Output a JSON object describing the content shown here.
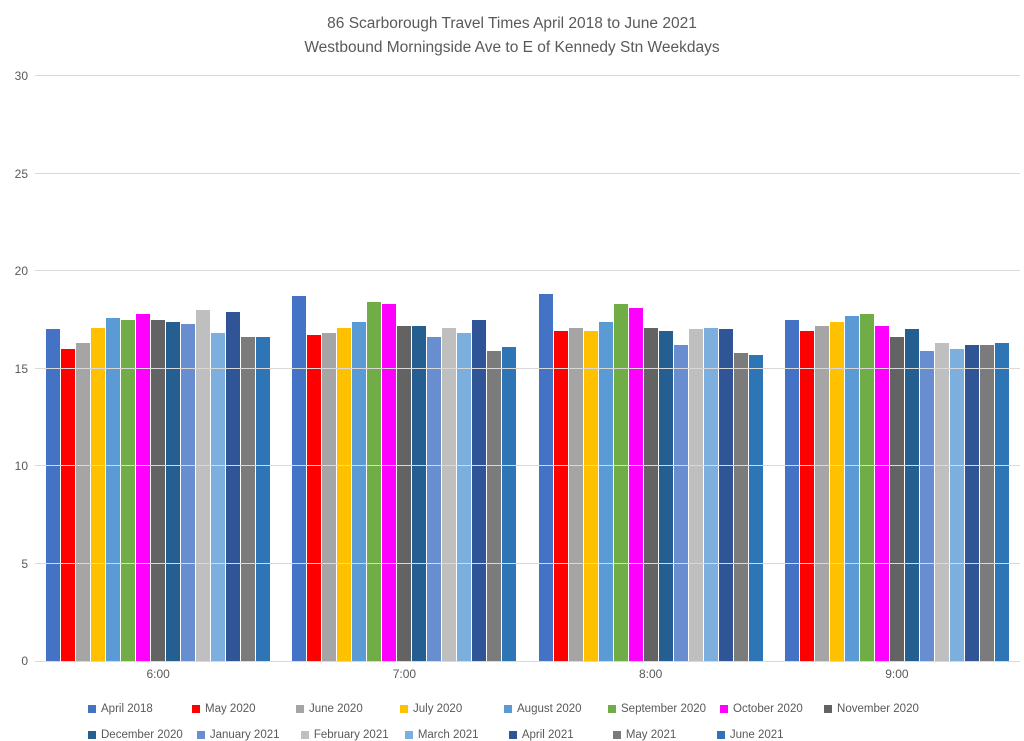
{
  "chart_data": {
    "type": "bar",
    "title_line1": "86 Scarborough Travel Times April 2018 to June 2021",
    "title_line2": "Westbound Morningside Ave to E of Kennedy Stn Weekdays",
    "xlabel": "",
    "ylabel": "",
    "categories": [
      "6:00",
      "7:00",
      "8:00",
      "9:00"
    ],
    "ylim": [
      0,
      30
    ],
    "yticks": [
      0,
      5,
      10,
      15,
      20,
      25,
      30
    ],
    "grid": true,
    "legend_position": "bottom",
    "legend_rows": [
      8,
      7
    ],
    "colors": {
      "axis_text": "#595959",
      "title_text": "#595959",
      "gridline": "#d9d9d9"
    },
    "series": [
      {
        "name": "April 2018",
        "color": "#4472C4",
        "values": [
          17.0,
          18.7,
          18.8,
          17.5
        ]
      },
      {
        "name": "May 2020",
        "color": "#FF0000",
        "values": [
          16.0,
          16.7,
          16.9,
          16.9
        ]
      },
      {
        "name": "June 2020",
        "color": "#A5A5A5",
        "values": [
          16.3,
          16.8,
          17.1,
          17.2
        ]
      },
      {
        "name": "July 2020",
        "color": "#FFC000",
        "values": [
          17.1,
          17.1,
          16.9,
          17.4
        ]
      },
      {
        "name": "August 2020",
        "color": "#5B9BD5",
        "values": [
          17.6,
          17.4,
          17.4,
          17.7
        ]
      },
      {
        "name": "September 2020",
        "color": "#70AD47",
        "values": [
          17.5,
          18.4,
          18.3,
          17.8
        ]
      },
      {
        "name": "October 2020",
        "color": "#FF00FF",
        "values": [
          17.8,
          18.3,
          18.1,
          17.2
        ]
      },
      {
        "name": "November 2020",
        "color": "#636363",
        "values": [
          17.5,
          17.2,
          17.1,
          16.6
        ]
      },
      {
        "name": "December 2020",
        "color": "#255E91",
        "values": [
          17.4,
          17.2,
          16.9,
          17.0
        ]
      },
      {
        "name": "January 2021",
        "color": "#698ED0",
        "values": [
          17.3,
          16.6,
          16.2,
          15.9
        ]
      },
      {
        "name": "February 2021",
        "color": "#BFBFBF",
        "values": [
          18.0,
          17.1,
          17.0,
          16.3
        ]
      },
      {
        "name": "March 2021",
        "color": "#7CAFDD",
        "values": [
          16.8,
          16.8,
          17.1,
          16.0
        ]
      },
      {
        "name": "April 2021",
        "color": "#2F5597",
        "values": [
          17.9,
          17.5,
          17.0,
          16.2
        ]
      },
      {
        "name": "May 2021",
        "color": "#7B7B7B",
        "values": [
          16.6,
          15.9,
          15.8,
          16.2
        ]
      },
      {
        "name": "June 2021",
        "color": "#2E75B6",
        "values": [
          16.6,
          16.1,
          15.7,
          16.3
        ]
      }
    ]
  }
}
